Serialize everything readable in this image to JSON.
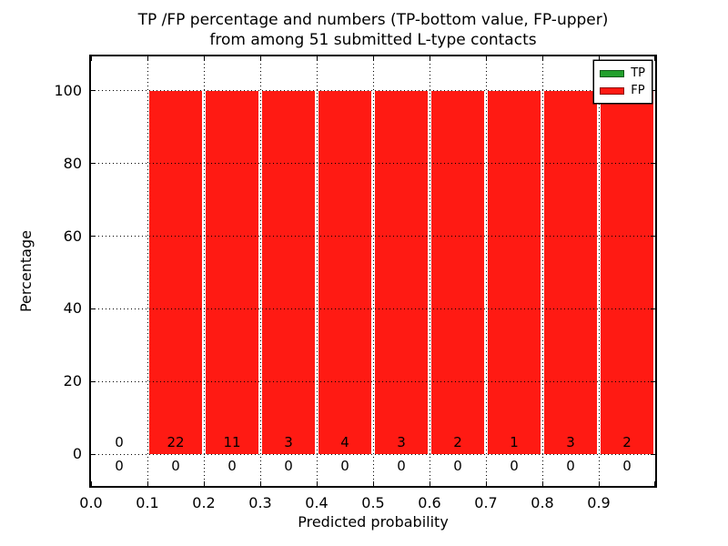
{
  "chart_data": {
    "type": "bar",
    "title_line1": "TP /FP percentage and numbers (TP-bottom value, FP-upper)",
    "title_line2": "from among 51 submitted L-type contacts",
    "xlabel": "Predicted probability",
    "ylabel": "Percentage",
    "total_contacts": 51,
    "xlim": [
      0.0,
      1.0
    ],
    "ylim": [
      -8.75,
      109.5
    ],
    "x_tick_values": [
      0.0,
      0.1,
      0.2,
      0.3,
      0.4,
      0.5,
      0.6,
      0.7,
      0.8,
      0.9,
      1.0
    ],
    "x_tick_labels": [
      "0.0",
      "0.1",
      "0.2",
      "0.3",
      "0.4",
      "0.5",
      "0.6",
      "0.7",
      "0.8",
      "0.9"
    ],
    "y_tick_values": [
      0,
      20,
      40,
      60,
      80,
      100
    ],
    "y_tick_labels": [
      "0",
      "20",
      "40",
      "60",
      "80",
      "100"
    ],
    "grid_style": "dotted",
    "bin_width": 0.1,
    "bins": [
      {
        "range_start": 0.0,
        "tp_pct": 0,
        "fp_pct": 0,
        "tp_count": 0,
        "fp_count": 0
      },
      {
        "range_start": 0.1,
        "tp_pct": 0,
        "fp_pct": 100,
        "tp_count": 0,
        "fp_count": 22
      },
      {
        "range_start": 0.2,
        "tp_pct": 0,
        "fp_pct": 100,
        "tp_count": 0,
        "fp_count": 11
      },
      {
        "range_start": 0.3,
        "tp_pct": 0,
        "fp_pct": 100,
        "tp_count": 0,
        "fp_count": 3
      },
      {
        "range_start": 0.4,
        "tp_pct": 0,
        "fp_pct": 100,
        "tp_count": 0,
        "fp_count": 4
      },
      {
        "range_start": 0.5,
        "tp_pct": 0,
        "fp_pct": 100,
        "tp_count": 0,
        "fp_count": 3
      },
      {
        "range_start": 0.6,
        "tp_pct": 0,
        "fp_pct": 100,
        "tp_count": 0,
        "fp_count": 2
      },
      {
        "range_start": 0.7,
        "tp_pct": 0,
        "fp_pct": 100,
        "tp_count": 0,
        "fp_count": 1
      },
      {
        "range_start": 0.8,
        "tp_pct": 0,
        "fp_pct": 100,
        "tp_count": 0,
        "fp_count": 3
      },
      {
        "range_start": 0.9,
        "tp_pct": 0,
        "fp_pct": 100,
        "tp_count": 0,
        "fp_count": 2
      }
    ],
    "series": [
      {
        "name": "TP",
        "color": "#22a02c",
        "values_pct": [
          0,
          0,
          0,
          0,
          0,
          0,
          0,
          0,
          0,
          0
        ],
        "counts": [
          0,
          0,
          0,
          0,
          0,
          0,
          0,
          0,
          0,
          0
        ]
      },
      {
        "name": "FP",
        "color": "#ff1a13",
        "values_pct": [
          0,
          100,
          100,
          100,
          100,
          100,
          100,
          100,
          100,
          100
        ],
        "counts": [
          0,
          22,
          11,
          3,
          4,
          3,
          2,
          1,
          3,
          2
        ]
      }
    ],
    "legend": {
      "position": "upper right",
      "entries": [
        {
          "label": "TP",
          "color": "#22a02c"
        },
        {
          "label": "FP",
          "color": "#ff1a13"
        }
      ]
    }
  }
}
